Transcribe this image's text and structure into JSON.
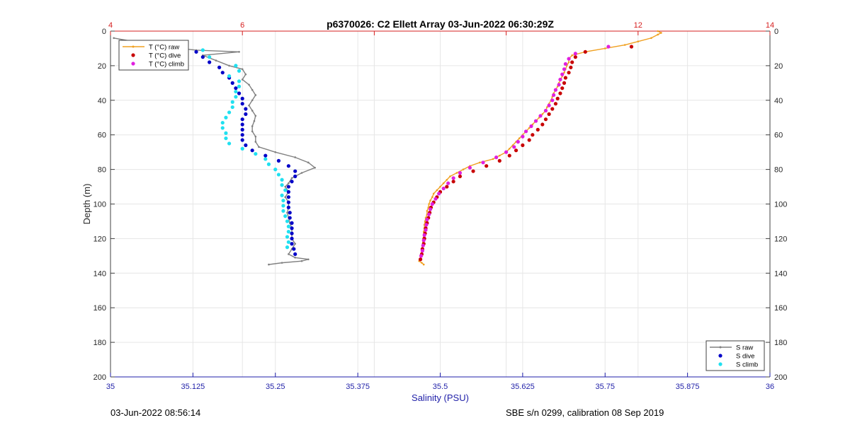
{
  "chart_data": {
    "type": "scatter",
    "title": "p6370026: C2 Ellett Array 03-Jun-2022 06:30:29Z",
    "ylabel": "Depth (m)",
    "xlabel_bottom": "Salinity (PSU)",
    "ylim": [
      0,
      200
    ],
    "y_reversed": true,
    "y_ticks": [
      0,
      20,
      40,
      60,
      80,
      100,
      120,
      140,
      160,
      180,
      200
    ],
    "x_bottom": {
      "lim": [
        35,
        36
      ],
      "ticks": [
        35,
        35.125,
        35.25,
        35.375,
        35.5,
        35.625,
        35.75,
        35.875,
        36
      ],
      "tick_labels": [
        "35",
        "35.125",
        "35.25",
        "35.375",
        "35.5",
        "35.625",
        "35.75",
        "35.875",
        "36"
      ],
      "color": "#1f1fa8"
    },
    "x_top": {
      "lim": [
        4,
        14
      ],
      "ticks": [
        4,
        6,
        8,
        10,
        12,
        14
      ],
      "tick_labels": [
        "4",
        "6",
        "",
        "",
        "12",
        "14"
      ],
      "color": "#d62020"
    },
    "grid": true,
    "series": [
      {
        "name": "T (°C) raw",
        "axis": "top",
        "style": "line-marker",
        "color": "#f0a020",
        "points": [
          [
            12.3,
            0
          ],
          [
            12.35,
            1
          ],
          [
            12.3,
            2
          ],
          [
            12.2,
            4
          ],
          [
            12.0,
            6
          ],
          [
            11.8,
            8
          ],
          [
            11.5,
            10
          ],
          [
            11.2,
            12
          ],
          [
            11.0,
            14
          ],
          [
            10.95,
            16
          ],
          [
            10.95,
            18
          ],
          [
            10.92,
            20
          ],
          [
            10.9,
            22
          ],
          [
            10.88,
            24
          ],
          [
            10.85,
            26
          ],
          [
            10.83,
            28
          ],
          [
            10.8,
            30
          ],
          [
            10.78,
            32
          ],
          [
            10.75,
            34
          ],
          [
            10.72,
            36
          ],
          [
            10.7,
            38
          ],
          [
            10.68,
            40
          ],
          [
            10.65,
            42
          ],
          [
            10.62,
            44
          ],
          [
            10.6,
            46
          ],
          [
            10.55,
            48
          ],
          [
            10.5,
            50
          ],
          [
            10.45,
            52
          ],
          [
            10.4,
            54
          ],
          [
            10.35,
            56
          ],
          [
            10.3,
            58
          ],
          [
            10.25,
            60
          ],
          [
            10.2,
            62
          ],
          [
            10.15,
            64
          ],
          [
            10.1,
            66
          ],
          [
            10.05,
            68
          ],
          [
            10.0,
            70
          ],
          [
            9.9,
            72
          ],
          [
            9.8,
            74
          ],
          [
            9.6,
            76
          ],
          [
            9.45,
            78
          ],
          [
            9.35,
            80
          ],
          [
            9.25,
            82
          ],
          [
            9.15,
            84
          ],
          [
            9.1,
            86
          ],
          [
            9.05,
            88
          ],
          [
            9.0,
            90
          ],
          [
            8.95,
            92
          ],
          [
            8.9,
            94
          ],
          [
            8.88,
            96
          ],
          [
            8.85,
            98
          ],
          [
            8.83,
            100
          ],
          [
            8.82,
            102
          ],
          [
            8.8,
            104
          ],
          [
            8.8,
            106
          ],
          [
            8.78,
            108
          ],
          [
            8.77,
            110
          ],
          [
            8.76,
            112
          ],
          [
            8.76,
            114
          ],
          [
            8.75,
            116
          ],
          [
            8.75,
            118
          ],
          [
            8.74,
            120
          ],
          [
            8.74,
            122
          ],
          [
            8.73,
            124
          ],
          [
            8.72,
            126
          ],
          [
            8.72,
            128
          ],
          [
            8.7,
            130
          ],
          [
            8.7,
            132
          ],
          [
            8.68,
            133
          ],
          [
            8.72,
            134
          ],
          [
            8.75,
            135
          ]
        ]
      },
      {
        "name": "T (°C) dive",
        "axis": "top",
        "style": "marker",
        "color": "#c80000",
        "points": [
          [
            11.9,
            9
          ],
          [
            11.2,
            12
          ],
          [
            11.05,
            15
          ],
          [
            11.0,
            18
          ],
          [
            10.98,
            21
          ],
          [
            10.95,
            24
          ],
          [
            10.9,
            27
          ],
          [
            10.88,
            30
          ],
          [
            10.85,
            33
          ],
          [
            10.82,
            36
          ],
          [
            10.78,
            39
          ],
          [
            10.75,
            42
          ],
          [
            10.7,
            45
          ],
          [
            10.65,
            48
          ],
          [
            10.6,
            51
          ],
          [
            10.55,
            54
          ],
          [
            10.48,
            57
          ],
          [
            10.4,
            60
          ],
          [
            10.35,
            63
          ],
          [
            10.25,
            66
          ],
          [
            10.15,
            69
          ],
          [
            10.05,
            72
          ],
          [
            9.9,
            75
          ],
          [
            9.7,
            78
          ],
          [
            9.5,
            81
          ],
          [
            9.3,
            84
          ],
          [
            9.2,
            87
          ],
          [
            9.1,
            90
          ],
          [
            9.0,
            93
          ],
          [
            8.95,
            96
          ],
          [
            8.9,
            99
          ],
          [
            8.86,
            102
          ],
          [
            8.84,
            105
          ],
          [
            8.82,
            108
          ],
          [
            8.8,
            111
          ],
          [
            8.78,
            114
          ],
          [
            8.77,
            117
          ],
          [
            8.76,
            120
          ],
          [
            8.75,
            123
          ],
          [
            8.73,
            126
          ],
          [
            8.72,
            129
          ],
          [
            8.7,
            132
          ]
        ]
      },
      {
        "name": "T (°C) climb",
        "axis": "top",
        "style": "marker",
        "color": "#e020e0",
        "points": [
          [
            11.55,
            9
          ],
          [
            11.05,
            13
          ],
          [
            10.95,
            16
          ],
          [
            10.9,
            19
          ],
          [
            10.88,
            22
          ],
          [
            10.85,
            25
          ],
          [
            10.82,
            28
          ],
          [
            10.8,
            31
          ],
          [
            10.75,
            34
          ],
          [
            10.72,
            37
          ],
          [
            10.7,
            40
          ],
          [
            10.65,
            43
          ],
          [
            10.6,
            46
          ],
          [
            10.52,
            49
          ],
          [
            10.45,
            52
          ],
          [
            10.38,
            55
          ],
          [
            10.3,
            58
          ],
          [
            10.25,
            61
          ],
          [
            10.18,
            64
          ],
          [
            10.12,
            67
          ],
          [
            10.0,
            70
          ],
          [
            9.85,
            73
          ],
          [
            9.65,
            76
          ],
          [
            9.45,
            79
          ],
          [
            9.3,
            82
          ],
          [
            9.2,
            85
          ],
          [
            9.12,
            88
          ],
          [
            9.05,
            91
          ],
          [
            8.98,
            94
          ],
          [
            8.93,
            97
          ],
          [
            8.88,
            100
          ],
          [
            8.85,
            103
          ],
          [
            8.83,
            106
          ],
          [
            8.8,
            109
          ],
          [
            8.79,
            112
          ],
          [
            8.78,
            115
          ],
          [
            8.76,
            118
          ],
          [
            8.75,
            121
          ],
          [
            8.74,
            124
          ],
          [
            8.73,
            127
          ],
          [
            8.71,
            130
          ]
        ]
      },
      {
        "name": "S raw",
        "axis": "bottom",
        "style": "line-marker",
        "color": "#808080",
        "points": [
          [
            35.005,
            4
          ],
          [
            35.08,
            9
          ],
          [
            35.13,
            11
          ],
          [
            35.195,
            12
          ],
          [
            35.14,
            14
          ],
          [
            35.16,
            17
          ],
          [
            35.18,
            20
          ],
          [
            35.2,
            22
          ],
          [
            35.205,
            25
          ],
          [
            35.2,
            28
          ],
          [
            35.21,
            31
          ],
          [
            35.215,
            34
          ],
          [
            35.22,
            37
          ],
          [
            35.215,
            40
          ],
          [
            35.21,
            43
          ],
          [
            35.215,
            46
          ],
          [
            35.22,
            49
          ],
          [
            35.218,
            52
          ],
          [
            35.215,
            55
          ],
          [
            35.215,
            58
          ],
          [
            35.22,
            61
          ],
          [
            35.22,
            64
          ],
          [
            35.225,
            67
          ],
          [
            35.25,
            70
          ],
          [
            35.28,
            73
          ],
          [
            35.3,
            76
          ],
          [
            35.31,
            79
          ],
          [
            35.29,
            82
          ],
          [
            35.275,
            85
          ],
          [
            35.27,
            88
          ],
          [
            35.265,
            90
          ],
          [
            35.27,
            93
          ],
          [
            35.265,
            96
          ],
          [
            35.27,
            99
          ],
          [
            35.27,
            102
          ],
          [
            35.268,
            105
          ],
          [
            35.27,
            108
          ],
          [
            35.272,
            111
          ],
          [
            35.275,
            114
          ],
          [
            35.275,
            117
          ],
          [
            35.275,
            120
          ],
          [
            35.28,
            123
          ],
          [
            35.275,
            126
          ],
          [
            35.27,
            129
          ],
          [
            35.28,
            131
          ],
          [
            35.3,
            132
          ],
          [
            35.29,
            133
          ],
          [
            35.26,
            134
          ],
          [
            35.24,
            135
          ]
        ]
      },
      {
        "name": "S dive",
        "axis": "bottom",
        "style": "marker",
        "color": "#0000c8",
        "points": [
          [
            35.09,
            9
          ],
          [
            35.13,
            12
          ],
          [
            35.14,
            15
          ],
          [
            35.15,
            18
          ],
          [
            35.165,
            21
          ],
          [
            35.17,
            24
          ],
          [
            35.18,
            27
          ],
          [
            35.185,
            30
          ],
          [
            35.19,
            33
          ],
          [
            35.195,
            36
          ],
          [
            35.2,
            39
          ],
          [
            35.2,
            42
          ],
          [
            35.205,
            45
          ],
          [
            35.205,
            48
          ],
          [
            35.2,
            51
          ],
          [
            35.2,
            54
          ],
          [
            35.2,
            57
          ],
          [
            35.2,
            60
          ],
          [
            35.2,
            63
          ],
          [
            35.205,
            66
          ],
          [
            35.215,
            69
          ],
          [
            35.235,
            72
          ],
          [
            35.255,
            75
          ],
          [
            35.27,
            78
          ],
          [
            35.28,
            81
          ],
          [
            35.28,
            84
          ],
          [
            35.275,
            87
          ],
          [
            35.27,
            90
          ],
          [
            35.27,
            93
          ],
          [
            35.27,
            96
          ],
          [
            35.27,
            99
          ],
          [
            35.27,
            102
          ],
          [
            35.272,
            105
          ],
          [
            35.272,
            108
          ],
          [
            35.275,
            111
          ],
          [
            35.275,
            114
          ],
          [
            35.275,
            117
          ],
          [
            35.275,
            120
          ],
          [
            35.275,
            123
          ],
          [
            35.278,
            126
          ],
          [
            35.28,
            129
          ]
        ]
      },
      {
        "name": "S climb",
        "axis": "bottom",
        "style": "marker",
        "color": "#20e0f0",
        "points": [
          [
            35.14,
            11
          ],
          [
            35.15,
            15
          ],
          [
            35.19,
            20
          ],
          [
            35.195,
            23
          ],
          [
            35.18,
            26
          ],
          [
            35.195,
            29
          ],
          [
            35.195,
            32
          ],
          [
            35.19,
            35
          ],
          [
            35.19,
            38
          ],
          [
            35.185,
            41
          ],
          [
            35.185,
            44
          ],
          [
            35.18,
            47
          ],
          [
            35.175,
            50
          ],
          [
            35.17,
            53
          ],
          [
            35.17,
            56
          ],
          [
            35.175,
            59
          ],
          [
            35.175,
            62
          ],
          [
            35.18,
            65
          ],
          [
            35.2,
            68
          ],
          [
            35.22,
            71
          ],
          [
            35.235,
            74
          ],
          [
            35.24,
            77
          ],
          [
            35.25,
            80
          ],
          [
            35.255,
            83
          ],
          [
            35.26,
            86
          ],
          [
            35.26,
            89
          ],
          [
            35.265,
            92
          ],
          [
            35.26,
            95
          ],
          [
            35.262,
            98
          ],
          [
            35.262,
            101
          ],
          [
            35.262,
            104
          ],
          [
            35.265,
            107
          ],
          [
            35.268,
            110
          ],
          [
            35.27,
            113
          ],
          [
            35.27,
            116
          ],
          [
            35.268,
            119
          ],
          [
            35.27,
            122
          ],
          [
            35.268,
            125
          ]
        ]
      }
    ],
    "legend_top": {
      "placement": "top-left",
      "entries": [
        "T (°C) raw",
        "T (°C) dive",
        "T (°C) climb"
      ]
    },
    "legend_bottom": {
      "placement": "bottom-right",
      "entries": [
        "S raw",
        "S dive",
        "S climb"
      ]
    }
  },
  "footer": {
    "left": "03-Jun-2022 08:56:14",
    "right": "SBE s/n 0299, calibration 08 Sep 2019"
  }
}
